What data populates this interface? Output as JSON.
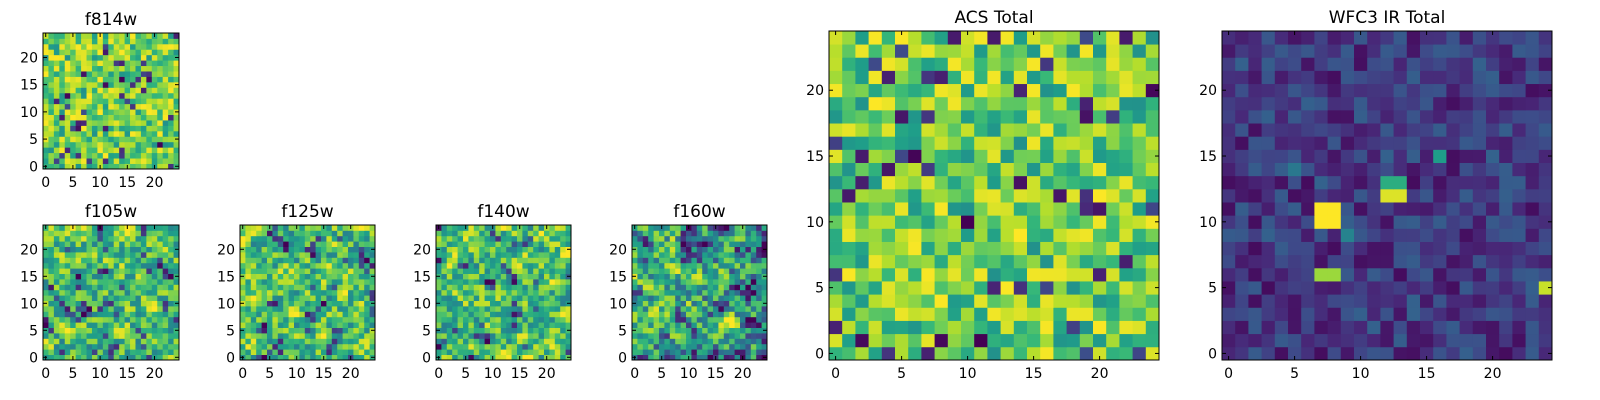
{
  "chart_data": [
    {
      "id": "f814w",
      "type": "heatmap",
      "title": "f814w",
      "colormap": "viridis",
      "xlim": [
        -0.5,
        24.5
      ],
      "ylim": [
        -0.5,
        24.5
      ],
      "xticks": [
        0,
        5,
        10,
        15,
        20
      ],
      "yticks": [
        0,
        5,
        10,
        15,
        20
      ],
      "xtick_labels": [
        "0",
        "5",
        "10",
        "15",
        "20"
      ],
      "ytick_labels": [
        "0",
        "5",
        "10",
        "15",
        "20"
      ],
      "seed": 11,
      "profile": "bright-noise"
    },
    {
      "id": "f105w",
      "type": "heatmap",
      "title": "f105w",
      "colormap": "viridis",
      "xlim": [
        -0.5,
        24.5
      ],
      "ylim": [
        -0.5,
        24.5
      ],
      "xticks": [
        0,
        5,
        10,
        15,
        20
      ],
      "yticks": [
        0,
        5,
        10,
        15,
        20
      ],
      "xtick_labels": [
        "0",
        "5",
        "10",
        "15",
        "20"
      ],
      "ytick_labels": [
        "0",
        "5",
        "10",
        "15",
        "20"
      ],
      "seed": 23,
      "profile": "smooth-bright"
    },
    {
      "id": "f125w",
      "type": "heatmap",
      "title": "f125w",
      "colormap": "viridis",
      "xlim": [
        -0.5,
        24.5
      ],
      "ylim": [
        -0.5,
        24.5
      ],
      "xticks": [
        0,
        5,
        10,
        15,
        20
      ],
      "yticks": [
        0,
        5,
        10,
        15,
        20
      ],
      "xtick_labels": [
        "0",
        "5",
        "10",
        "15",
        "20"
      ],
      "ytick_labels": [
        "0",
        "5",
        "10",
        "15",
        "20"
      ],
      "seed": 37,
      "profile": "smooth-bright"
    },
    {
      "id": "f140w",
      "type": "heatmap",
      "title": "f140w",
      "colormap": "viridis",
      "xlim": [
        -0.5,
        24.5
      ],
      "ylim": [
        -0.5,
        24.5
      ],
      "xticks": [
        0,
        5,
        10,
        15,
        20
      ],
      "yticks": [
        0,
        5,
        10,
        15,
        20
      ],
      "xtick_labels": [
        "0",
        "5",
        "10",
        "15",
        "20"
      ],
      "ytick_labels": [
        "0",
        "5",
        "10",
        "15",
        "20"
      ],
      "seed": 41,
      "profile": "smooth-bright"
    },
    {
      "id": "f160w",
      "type": "heatmap",
      "title": "f160w",
      "colormap": "viridis",
      "xlim": [
        -0.5,
        24.5
      ],
      "ylim": [
        -0.5,
        24.5
      ],
      "xticks": [
        0,
        5,
        10,
        15,
        20
      ],
      "yticks": [
        0,
        5,
        10,
        15,
        20
      ],
      "xtick_labels": [
        "0",
        "5",
        "10",
        "15",
        "20"
      ],
      "ytick_labels": [
        "0",
        "5",
        "10",
        "15",
        "20"
      ],
      "seed": 53,
      "profile": "smooth-mid"
    },
    {
      "id": "acs-total",
      "type": "heatmap",
      "title": "ACS Total",
      "colormap": "viridis",
      "xlim": [
        -0.5,
        24.5
      ],
      "ylim": [
        -0.5,
        24.5
      ],
      "xticks": [
        0,
        5,
        10,
        15,
        20
      ],
      "yticks": [
        0,
        5,
        10,
        15,
        20
      ],
      "xtick_labels": [
        "0",
        "5",
        "10",
        "15",
        "20"
      ],
      "ytick_labels": [
        "0",
        "5",
        "10",
        "15",
        "20"
      ],
      "seed": 67,
      "profile": "bright-noise"
    },
    {
      "id": "wfc3-ir-total",
      "type": "heatmap",
      "title": "WFC3 IR Total",
      "colormap": "viridis",
      "xlim": [
        -0.5,
        24.5
      ],
      "ylim": [
        -0.5,
        24.5
      ],
      "xticks": [
        0,
        5,
        10,
        15,
        20
      ],
      "yticks": [
        0,
        5,
        10,
        15,
        20
      ],
      "xtick_labels": [
        "0",
        "5",
        "10",
        "15",
        "20"
      ],
      "ytick_labels": [
        "0",
        "5",
        "10",
        "15",
        "20"
      ],
      "seed": 79,
      "profile": "dark-sources",
      "bright_pixels": [
        [
          7,
          10,
          1.0
        ],
        [
          8,
          10,
          1.0
        ],
        [
          7,
          11,
          1.0
        ],
        [
          8,
          11,
          1.0
        ],
        [
          12,
          12,
          0.95
        ],
        [
          13,
          12,
          0.95
        ],
        [
          12,
          13,
          0.62
        ],
        [
          13,
          13,
          0.62
        ],
        [
          7,
          6,
          0.85
        ],
        [
          8,
          6,
          0.85
        ],
        [
          24,
          5,
          0.92
        ],
        [
          16,
          15,
          0.55
        ],
        [
          9,
          9,
          0.45
        ],
        [
          5,
          14,
          0.4
        ]
      ]
    }
  ]
}
